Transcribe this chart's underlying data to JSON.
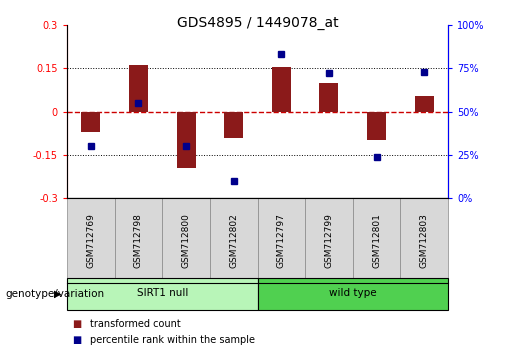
{
  "title": "GDS4895 / 1449078_at",
  "samples": [
    "GSM712769",
    "GSM712798",
    "GSM712800",
    "GSM712802",
    "GSM712797",
    "GSM712799",
    "GSM712801",
    "GSM712803"
  ],
  "transformed_count": [
    -0.07,
    0.16,
    -0.195,
    -0.09,
    0.155,
    0.1,
    -0.1,
    0.055
  ],
  "percentile_rank": [
    30,
    55,
    30,
    10,
    83,
    72,
    24,
    73
  ],
  "groups": [
    {
      "label": "SIRT1 null",
      "span": [
        0,
        3
      ],
      "color_light": "#c8f5c8",
      "color_dark": "#90ee90"
    },
    {
      "label": "wild type",
      "span": [
        4,
        7
      ],
      "color_light": "#5cd65c",
      "color_dark": "#3cb371"
    }
  ],
  "ylim_left": [
    -0.3,
    0.3
  ],
  "ylim_right": [
    0,
    100
  ],
  "yticks_left": [
    -0.3,
    -0.15,
    0.0,
    0.15,
    0.3
  ],
  "yticks_right": [
    0,
    25,
    50,
    75,
    100
  ],
  "bar_color": "#8B1A1A",
  "dot_color": "#00008B",
  "hline_color": "#cc0000",
  "title_fontsize": 10,
  "tick_fontsize": 7,
  "label_fontsize": 7.5,
  "genotype_label": "genotype/variation",
  "legend_transformed": "transformed count",
  "legend_percentile": "percentile rank within the sample",
  "sirt1_null_color": "#b8f5b8",
  "wild_type_color": "#50d050"
}
